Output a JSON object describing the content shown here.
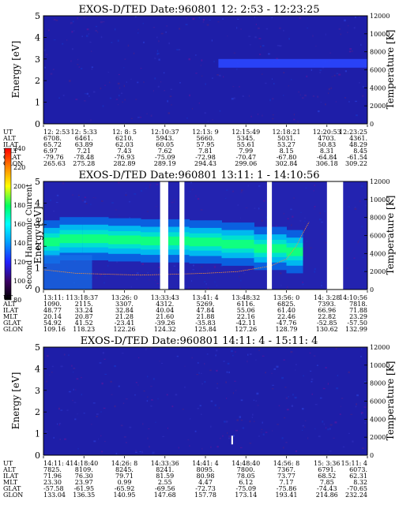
{
  "chart_data": [
    {
      "type": "heatmap",
      "title": "EXOS-D/TED   Date:960801  12: 2:53 - 12:23:25",
      "ylabel": "Energy [eV]",
      "y2label": "Temperature [K]",
      "ylim": [
        0,
        5
      ],
      "y2lim": [
        0,
        12000
      ],
      "y_ticks": [
        "0",
        "1",
        "2",
        "3",
        "4",
        "5"
      ],
      "y2_ticks": [
        "0",
        "2000",
        "4000",
        "6000",
        "8000",
        "10000",
        "12000"
      ],
      "ephemeris_labels": [
        "UT",
        "ALT",
        "ILAT",
        "MLT",
        "GLAT",
        "GLON"
      ],
      "ephemeris": [
        [
          "12: 2:53",
          "6708.",
          "65.72",
          "6.97",
          "-79.76",
          "265.63"
        ],
        [
          "12: 5:33",
          "6461.",
          "63.89",
          "7.21",
          "-78.48",
          "275.28"
        ],
        [
          "12: 8: 5",
          "6210.",
          "62.03",
          "7.43",
          "-76.93",
          "282.89"
        ],
        [
          "12:10:37",
          "5943.",
          "60.05",
          "7.62",
          "-75.09",
          "289.19"
        ],
        [
          "12:13: 9",
          "5660.",
          "57.95",
          "7.81",
          "-72.98",
          "294.43"
        ],
        [
          "12:15:49",
          "5345.",
          "55.61",
          "7.99",
          "-70.47",
          "299.06"
        ],
        [
          "12:18:21",
          "5031.",
          "53.27",
          "8.15",
          "-67.80",
          "302.84"
        ],
        [
          "12:20:53",
          "4703.",
          "50.83",
          "8.31",
          "-64.84",
          "306.18"
        ],
        [
          "12:23:25",
          "4361.",
          "48.29",
          "8.45",
          "-61.54",
          "309.22"
        ]
      ],
      "features": [
        {
          "x": [
            0.54,
            1.0
          ],
          "y": [
            2.6,
            3.0
          ],
          "intensity": "medium"
        }
      ],
      "gaps": []
    },
    {
      "type": "heatmap",
      "title": "EXOS-D/TED   Date:960801  13:11: 1 - 14:10:56",
      "ylabel": "Energy [eV]",
      "y2label": "Temperature [K]",
      "colorbar_label": "Second Harmonic Current",
      "colorbar_ticks": [
        "80",
        "100",
        "120",
        "140",
        "160",
        "180",
        "200",
        "220",
        "240"
      ],
      "ylim": [
        0,
        5
      ],
      "y2lim": [
        0,
        12000
      ],
      "y_ticks": [
        "0",
        "1",
        "2",
        "3",
        "4",
        "5"
      ],
      "y2_ticks": [
        "0",
        "2000",
        "4000",
        "6000",
        "8000",
        "10000",
        "12000"
      ],
      "ephemeris_labels": [
        "UT",
        "ALT",
        "ILAT",
        "MLT",
        "GLAT",
        "GLON"
      ],
      "ephemeris": [
        [
          "13:11: 1",
          "1090.",
          "48.77",
          "20.14",
          "54.92",
          "109.16"
        ],
        [
          "13:18:37",
          "2115.",
          "33.24",
          "20.87",
          "41.52",
          "118.23"
        ],
        [
          "13:26: 0",
          "3307.",
          "32.84",
          "21.28",
          "-23.41",
          "122.26"
        ],
        [
          "13:33:43",
          "4312.",
          "40.04",
          "21.60",
          "-39.26",
          "124.32"
        ],
        [
          "13:41: 4",
          "5269.",
          "47.84",
          "21.88",
          "-35.83",
          "125.84"
        ],
        [
          "13:48:32",
          "6116.",
          "55.06",
          "22.16",
          "-42.11",
          "127.26"
        ],
        [
          "13:56: 0",
          "6825.",
          "61.40",
          "22.46",
          "-47.76",
          "128.79"
        ],
        [
          "14: 3:28",
          "7393.",
          "66.96",
          "22.82",
          "-52.85",
          "130.62"
        ],
        [
          "14:10:56",
          "7818.",
          "71.88",
          "23.29",
          "-57.50",
          "132.99"
        ]
      ],
      "gaps": [
        {
          "x": [
            0.36,
            0.385
          ]
        },
        {
          "x": [
            0.42,
            0.435
          ]
        },
        {
          "x": [
            0.69,
            0.705
          ]
        },
        {
          "x": [
            0.875,
            0.925
          ]
        }
      ],
      "band_energy_eV": [
        2.1,
        2.3,
        2.4,
        2.3,
        2.3,
        2.2,
        2.2,
        2.2,
        2.0,
        1.8,
        1.7
      ],
      "band_x": [
        0.0,
        0.05,
        0.12,
        0.2,
        0.3,
        0.45,
        0.5,
        0.55,
        0.65,
        0.75,
        0.8
      ],
      "temperature_K": [
        2200,
        1800,
        1700,
        1600,
        1700,
        1800,
        2000,
        2600,
        3400,
        4800,
        6200,
        7500
      ],
      "temperature_x": [
        0.0,
        0.1,
        0.2,
        0.3,
        0.4,
        0.5,
        0.6,
        0.7,
        0.75,
        0.78,
        0.8,
        0.82
      ]
    },
    {
      "type": "heatmap",
      "title": "EXOS-D/TED   Date:960801  14:11: 4 - 15:11: 4",
      "ylabel": "Energy [eV]",
      "y2label": "Temperature [K]",
      "ylim": [
        0,
        5
      ],
      "y2lim": [
        0,
        12000
      ],
      "y_ticks": [
        "0",
        "1",
        "2",
        "3",
        "4",
        "5"
      ],
      "y2_ticks": [
        "0",
        "2000",
        "4000",
        "6000",
        "8000",
        "10000",
        "12000"
      ],
      "ephemeris_labels": [
        "UT",
        "ALT",
        "ILAT",
        "MLT",
        "GLAT",
        "GLON"
      ],
      "ephemeris": [
        [
          "14:11: 4",
          "7825.",
          "71.96",
          "23.30",
          "-57.58",
          "133.04"
        ],
        [
          "14:18:40",
          "8109.",
          "76.30",
          "23.97",
          "-61.95",
          "136.35"
        ],
        [
          "14:26: 8",
          "8245.",
          "79.71",
          "0.99",
          "-65.92",
          "140.95"
        ],
        [
          "14:33:36",
          "8241.",
          "81.59",
          "2.55",
          "-69.56",
          "147.68"
        ],
        [
          "14:41: 4",
          "8095.",
          "80.98",
          "4.47",
          "-72.73",
          "157.78"
        ],
        [
          "14:48:40",
          "7800.",
          "78.05",
          "6.12",
          "-75.09",
          "173.14"
        ],
        [
          "14:56: 8",
          "7367.",
          "73.77",
          "7.17",
          "-75.86",
          "193.41"
        ],
        [
          "15: 3:36",
          "6791.",
          "68.52",
          "7.85",
          "-74.43",
          "214.86"
        ],
        [
          "15:11: 4",
          "6073.",
          "62.31",
          "8.32",
          "-70.65",
          "232.24"
        ]
      ],
      "features": [
        {
          "x": [
            0.58,
            0.585
          ],
          "y": [
            0.5,
            0.9
          ],
          "intensity": "high"
        }
      ],
      "gaps": []
    }
  ]
}
